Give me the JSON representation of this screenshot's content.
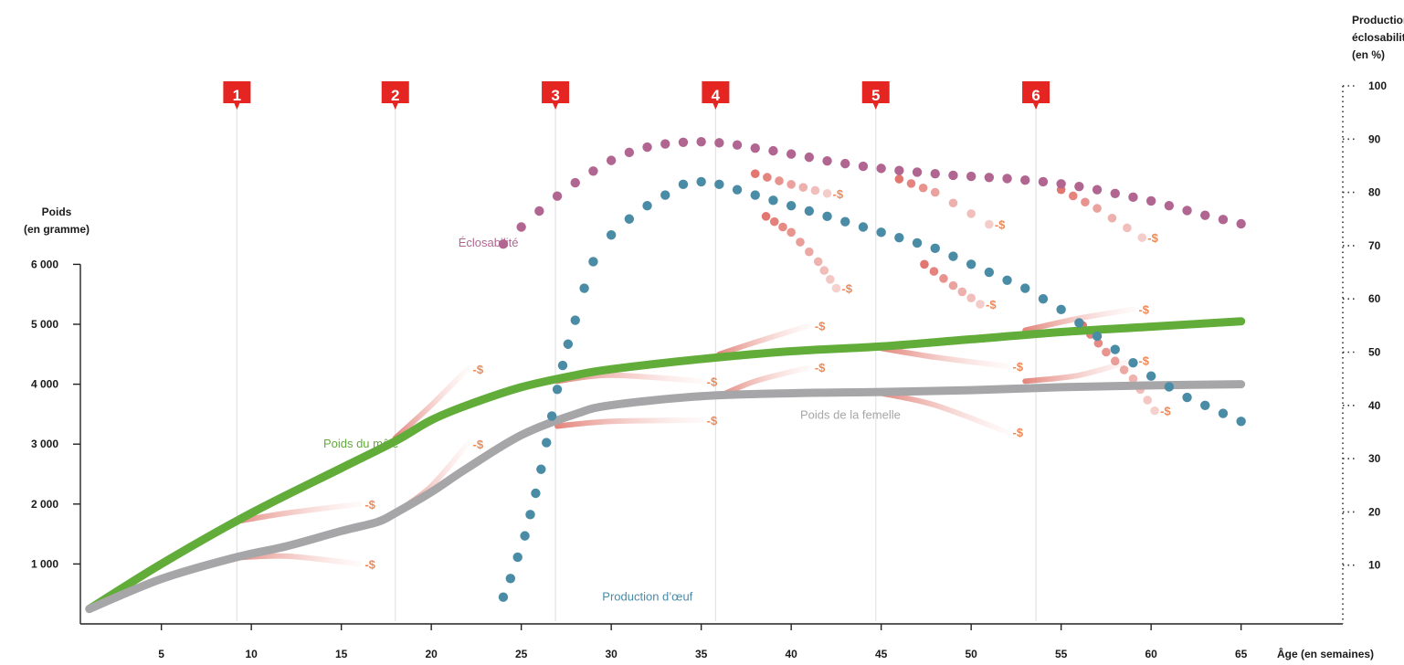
{
  "chart_data": {
    "type": "line",
    "title": "",
    "xlabel": "Âge (en semaines)",
    "ylabel_left": [
      "Poids",
      "(en gramme)"
    ],
    "ylabel_right": [
      "Production /",
      "éclosabilité",
      "(en %)"
    ],
    "xlim": [
      0.5,
      65.5
    ],
    "ylim_left": [
      0,
      6000
    ],
    "ylim_right": [
      0,
      100
    ],
    "x_ticks": [
      "5",
      "10",
      "15",
      "20",
      "25",
      "30",
      "35",
      "40",
      "45",
      "50",
      "55",
      "60",
      "65"
    ],
    "y_left_ticks": [
      "1 000",
      "2 000",
      "3 000",
      "4 000",
      "5 000",
      "6 000"
    ],
    "y_left_tick_values": [
      1000,
      2000,
      3000,
      4000,
      5000,
      6000
    ],
    "y_right_ticks": [
      "10",
      "20",
      "30",
      "40",
      "50",
      "60",
      "70",
      "80",
      "90",
      "100"
    ],
    "y_right_tick_values": [
      10,
      20,
      30,
      40,
      50,
      60,
      70,
      80,
      90,
      100
    ],
    "markers": [
      {
        "label": "1",
        "week": 9.2
      },
      {
        "label": "2",
        "week": 18.0
      },
      {
        "label": "3",
        "week": 26.9
      },
      {
        "label": "4",
        "week": 35.8
      },
      {
        "label": "5",
        "week": 44.7
      },
      {
        "label": "6",
        "week": 53.6
      }
    ],
    "series": [
      {
        "name": "Poids du mâle",
        "axis": "left",
        "style": "thick-line",
        "color": "#62ad3a",
        "x": [
          1,
          5,
          10,
          15,
          18,
          20,
          22,
          25,
          28,
          30,
          35,
          40,
          45,
          50,
          55,
          60,
          65
        ],
        "y": [
          250,
          1000,
          1850,
          2600,
          3050,
          3400,
          3650,
          3950,
          4150,
          4250,
          4420,
          4550,
          4630,
          4750,
          4870,
          4960,
          5050
        ]
      },
      {
        "name": "Poids de la femelle",
        "axis": "left",
        "style": "thick-line",
        "color": "#a6a6a8",
        "x": [
          1,
          5,
          9,
          12,
          15,
          17,
          18,
          20,
          22,
          25,
          28,
          30,
          35,
          40,
          45,
          50,
          55,
          60,
          65
        ],
        "y": [
          250,
          750,
          1100,
          1300,
          1550,
          1700,
          1850,
          2200,
          2600,
          3150,
          3500,
          3650,
          3800,
          3850,
          3870,
          3900,
          3950,
          3980,
          4000
        ]
      },
      {
        "name": "Éclosabilité",
        "axis": "right",
        "style": "dots",
        "color": "#b16691",
        "x": [
          24,
          25,
          26,
          27,
          28,
          29,
          30,
          31,
          32,
          33,
          34,
          35,
          36,
          37,
          38,
          39,
          40,
          41,
          42,
          43,
          44,
          45,
          46,
          47,
          48,
          49,
          50,
          51,
          52,
          53,
          54,
          55,
          56,
          57,
          58,
          59,
          60,
          61,
          62,
          63,
          64,
          65
        ],
        "y": [
          70.3,
          73.5,
          76.5,
          79.3,
          81.8,
          84.0,
          86.0,
          87.5,
          88.5,
          89.1,
          89.4,
          89.5,
          89.3,
          88.9,
          88.3,
          87.8,
          87.2,
          86.6,
          85.9,
          85.4,
          84.9,
          84.5,
          84.1,
          83.8,
          83.5,
          83.2,
          83.0,
          82.8,
          82.6,
          82.3,
          82.0,
          81.6,
          81.1,
          80.5,
          79.8,
          79.1,
          78.4,
          77.5,
          76.6,
          75.7,
          74.9,
          74.1
        ]
      },
      {
        "name": "Production d’œuf",
        "axis": "right",
        "style": "dots",
        "color": "#4a8ba6",
        "x": [
          24.0,
          24.4,
          24.8,
          25.2,
          25.5,
          25.8,
          26.1,
          26.4,
          26.7,
          27.0,
          27.3,
          27.6,
          28.0,
          28.5,
          29.0,
          30.0,
          31.0,
          32.0,
          33.0,
          34.0,
          35.0,
          36.0,
          37.0,
          38.0,
          39.0,
          40.0,
          41.0,
          42.0,
          43.0,
          44.0,
          45.0,
          46.0,
          47.0,
          48.0,
          49.0,
          50.0,
          51.0,
          52.0,
          53.0,
          54.0,
          55.0,
          56.0,
          57.0,
          58.0,
          59.0,
          60.0,
          61.0,
          62.0,
          63.0,
          64.0,
          65.0
        ],
        "y": [
          4.0,
          7.5,
          11.5,
          15.5,
          19.5,
          23.5,
          28.0,
          33.0,
          38.0,
          43.0,
          47.5,
          51.5,
          56.0,
          62.0,
          67.0,
          72.0,
          75.0,
          77.5,
          79.5,
          81.5,
          82.0,
          81.5,
          80.5,
          79.5,
          78.5,
          77.5,
          76.5,
          75.5,
          74.5,
          73.5,
          72.5,
          71.5,
          70.5,
          69.5,
          68.0,
          66.5,
          65.0,
          63.5,
          62.0,
          60.0,
          58.0,
          55.5,
          53.0,
          50.5,
          48.0,
          45.5,
          43.5,
          41.5,
          40.0,
          38.5,
          37.0
        ]
      }
    ],
    "annotations": [
      {
        "text": "Poids du mâle",
        "anchor_week": 14.0,
        "anchor_weight": 3000,
        "color": "#62ad3a"
      },
      {
        "text": "Poids de la femelle",
        "anchor_week": 40.5,
        "anchor_weight": 3480,
        "color": "#a6a6a8"
      },
      {
        "text": "Éclosabilité",
        "anchor_week": 21.5,
        "anchor_pct": 70.5,
        "color": "#b16691"
      },
      {
        "text": "Production d’œuf",
        "anchor_week": 29.5,
        "anchor_pct": 4.0,
        "color": "#4a8ba6"
      }
    ],
    "deviation_label": "-$",
    "deviations": [
      {
        "axis": "left",
        "from": "female",
        "base": [
          [
            9,
            1100
          ],
          [
            12,
            1130
          ],
          [
            16,
            1000
          ]
        ]
      },
      {
        "axis": "left",
        "from": "male",
        "base": [
          [
            9,
            1700
          ],
          [
            12,
            1850
          ],
          [
            16,
            2000
          ]
        ]
      },
      {
        "axis": "left",
        "from": "female",
        "base": [
          [
            18,
            1850
          ],
          [
            20,
            2300
          ],
          [
            22,
            3000
          ]
        ]
      },
      {
        "axis": "left",
        "from": "male",
        "base": [
          [
            18,
            3100
          ],
          [
            20,
            3650
          ],
          [
            22,
            4250
          ]
        ]
      },
      {
        "axis": "left",
        "from": "female",
        "base": [
          [
            27,
            3300
          ],
          [
            30,
            3380
          ],
          [
            35,
            3400
          ]
        ]
      },
      {
        "axis": "left",
        "from": "male",
        "base": [
          [
            27,
            4050
          ],
          [
            30,
            4150
          ],
          [
            35,
            4050
          ]
        ]
      },
      {
        "axis": "left",
        "from": "female",
        "base": [
          [
            36,
            3800
          ],
          [
            38,
            4050
          ],
          [
            41,
            4280
          ]
        ]
      },
      {
        "axis": "left",
        "from": "male",
        "base": [
          [
            36,
            4500
          ],
          [
            38,
            4700
          ],
          [
            41,
            4980
          ]
        ]
      },
      {
        "axis": "left",
        "from": "female",
        "base": [
          [
            45,
            3850
          ],
          [
            48,
            3650
          ],
          [
            52,
            3200
          ]
        ]
      },
      {
        "axis": "left",
        "from": "male",
        "base": [
          [
            45,
            4600
          ],
          [
            48,
            4450
          ],
          [
            52,
            4300
          ]
        ]
      },
      {
        "axis": "left",
        "from": "female",
        "base": [
          [
            53,
            4050
          ],
          [
            56,
            4150
          ],
          [
            59,
            4400
          ]
        ]
      },
      {
        "axis": "left",
        "from": "male",
        "base": [
          [
            53,
            4900
          ],
          [
            56,
            5100
          ],
          [
            59,
            5250
          ]
        ]
      },
      {
        "axis": "right",
        "from": "eclos",
        "base": [
          [
            38,
            83.5
          ],
          [
            40,
            81.5
          ],
          [
            42,
            79.8
          ]
        ]
      },
      {
        "axis": "right",
        "from": "prod",
        "base": [
          [
            38.6,
            75.5
          ],
          [
            40,
            72.5
          ],
          [
            41.5,
            67.0
          ],
          [
            42.5,
            62.0
          ]
        ]
      },
      {
        "axis": "right",
        "from": "eclos",
        "base": [
          [
            46,
            82.5
          ],
          [
            48,
            80.0
          ],
          [
            51,
            74.0
          ]
        ]
      },
      {
        "axis": "right",
        "from": "prod",
        "base": [
          [
            47.4,
            66.5
          ],
          [
            49,
            62.5
          ],
          [
            50.5,
            59.0
          ]
        ]
      },
      {
        "axis": "right",
        "from": "eclos",
        "base": [
          [
            55,
            80.5
          ],
          [
            57,
            77.0
          ],
          [
            59.5,
            71.5
          ]
        ]
      },
      {
        "axis": "right",
        "from": "prod",
        "base": [
          [
            56.2,
            55.0
          ],
          [
            57.5,
            50.0
          ],
          [
            59,
            45.0
          ],
          [
            60.2,
            39.0
          ]
        ]
      }
    ],
    "grid": false,
    "legend": "inline"
  }
}
